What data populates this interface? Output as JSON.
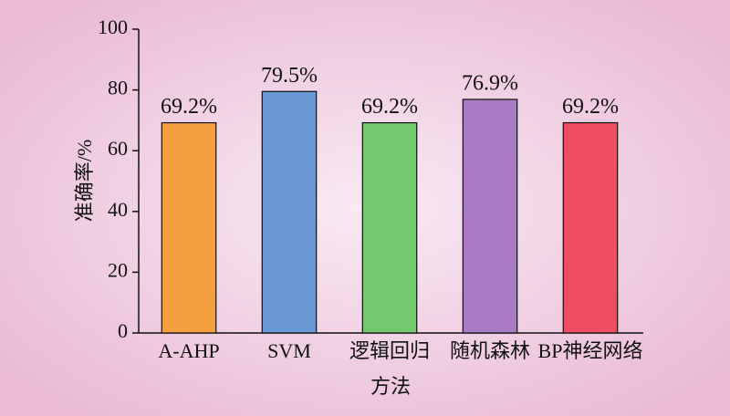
{
  "chart_data": {
    "type": "bar",
    "x_label": "方法",
    "y_label": "准确率/%",
    "categories": [
      "A-AHP",
      "SVM",
      "逻辑回归",
      "随机森林",
      "BP神经网络"
    ],
    "values": [
      69.2,
      79.5,
      69.2,
      76.9,
      69.2
    ],
    "value_labels": [
      "69.2%",
      "79.5%",
      "69.2%",
      "76.9%",
      "69.2%"
    ],
    "colors": [
      "#f5a040",
      "#6a98d4",
      "#72c96e",
      "#a97bc4",
      "#ef4e62"
    ],
    "ylim": [
      0,
      100
    ],
    "yticks": [
      0,
      20,
      40,
      60,
      80,
      100
    ],
    "grid": false
  }
}
